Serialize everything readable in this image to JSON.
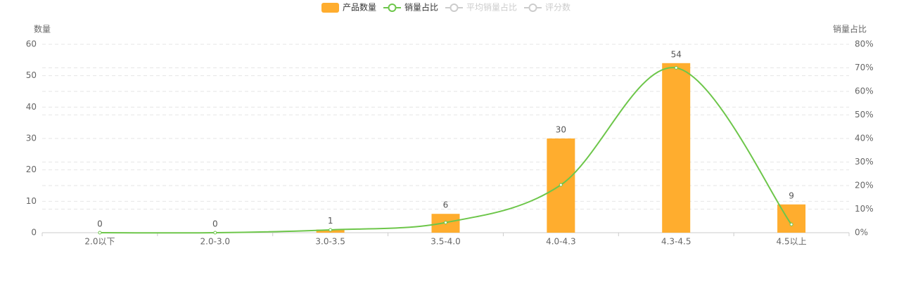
{
  "chart_data": {
    "type": "bar-line",
    "y_label": "数量",
    "y2_label": "销量占比",
    "categories": [
      "2.0以下",
      "2.0-3.0",
      "3.0-3.5",
      "3.5-4.0",
      "4.0-4.3",
      "4.3-4.5",
      "4.5以上"
    ],
    "series": [
      {
        "name": "产品数量",
        "type": "bar",
        "color": "#ffad2e",
        "values": [
          0,
          0,
          1,
          6,
          30,
          54,
          9
        ]
      },
      {
        "name": "销量占比",
        "type": "line",
        "axis": "y2",
        "color": "#6dc64a",
        "values": [
          0,
          0,
          1.2,
          4.3,
          20.3,
          70,
          3.5
        ]
      },
      {
        "name": "平均销量占比",
        "type": "line",
        "hidden": true,
        "color": "#cccccc"
      },
      {
        "name": "评分数",
        "type": "line",
        "hidden": true,
        "color": "#cccccc"
      }
    ],
    "ylim": [
      0,
      60
    ],
    "yticks": [
      0,
      10,
      20,
      30,
      40,
      50,
      60
    ],
    "y2lim": [
      0,
      80
    ],
    "y2ticks": [
      {
        "value": 0,
        "label": "0%"
      },
      {
        "value": 10,
        "label": "10%"
      },
      {
        "value": 20,
        "label": "20%"
      },
      {
        "value": 30,
        "label": "30%"
      },
      {
        "value": 40,
        "label": "40%"
      },
      {
        "value": 50,
        "label": "50%"
      },
      {
        "value": 60,
        "label": "60%"
      },
      {
        "value": 70,
        "label": "70%"
      },
      {
        "value": 80,
        "label": "80%"
      }
    ],
    "grid": true,
    "legend": "top"
  }
}
